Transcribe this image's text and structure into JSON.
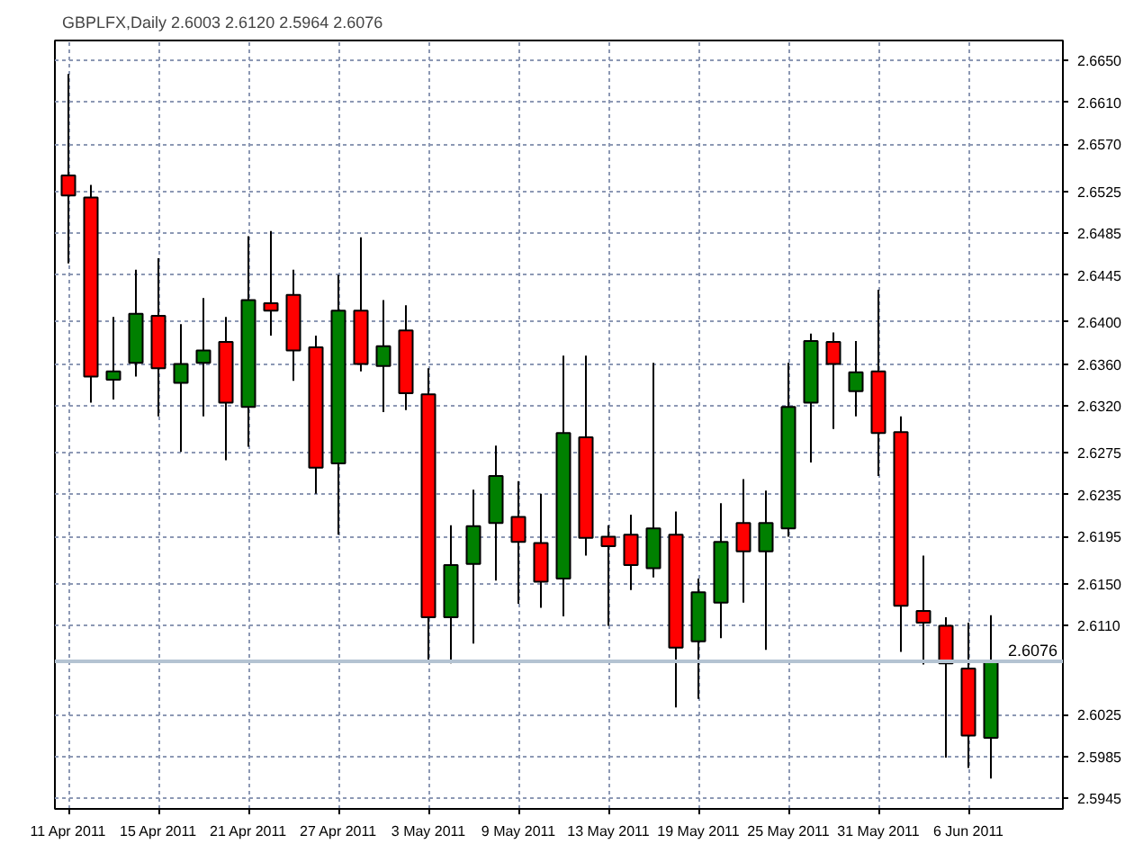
{
  "chart_data": {
    "type": "candlestick",
    "title": "GBPLFX,Daily  2.6003 2.6120 2.5964 2.6076",
    "categories": [
      "11 Apr 2011",
      null,
      null,
      null,
      "15 Apr 2011",
      null,
      null,
      null,
      "21 Apr 2011",
      null,
      null,
      null,
      "27 Apr 2011",
      null,
      null,
      null,
      "3 May 2011",
      null,
      null,
      null,
      "9 May 2011",
      null,
      null,
      null,
      "13 May 2011",
      null,
      null,
      null,
      "19 May 2011",
      null,
      null,
      null,
      "25 May 2011",
      null,
      null,
      null,
      "31 May 2011",
      null,
      null,
      null,
      "6 Jun 2011",
      null
    ],
    "ohlc": [
      [
        2.654,
        2.6637,
        2.6456,
        2.6521
      ],
      [
        2.6519,
        2.6531,
        2.6323,
        2.6348
      ],
      [
        2.6345,
        2.6405,
        2.6326,
        2.6353
      ],
      [
        2.6361,
        2.645,
        2.6348,
        2.6408
      ],
      [
        2.6406,
        2.6461,
        2.631,
        2.6356
      ],
      [
        2.6342,
        2.6398,
        2.6276,
        2.636
      ],
      [
        2.6361,
        2.6423,
        2.631,
        2.6373
      ],
      [
        2.6381,
        2.6405,
        2.6268,
        2.6323
      ],
      [
        2.6319,
        2.6482,
        2.6281,
        2.6421
      ],
      [
        2.6418,
        2.6487,
        2.6387,
        2.6411
      ],
      [
        2.6426,
        2.645,
        2.6344,
        2.6373
      ],
      [
        2.6376,
        2.6387,
        2.6236,
        2.6261
      ],
      [
        2.6265,
        2.6445,
        2.6197,
        2.6411
      ],
      [
        2.6411,
        2.6481,
        2.6353,
        2.636
      ],
      [
        2.6358,
        2.6421,
        2.6314,
        2.6377
      ],
      [
        2.6392,
        2.6416,
        2.6316,
        2.6332
      ],
      [
        2.6331,
        2.6356,
        2.6076,
        2.6118
      ],
      [
        2.6118,
        2.6206,
        2.6074,
        2.6168
      ],
      [
        2.6169,
        2.624,
        2.6093,
        2.6205
      ],
      [
        2.6208,
        2.6282,
        2.6153,
        2.6253
      ],
      [
        2.6214,
        2.6248,
        2.6131,
        2.619
      ],
      [
        2.6189,
        2.6236,
        2.6127,
        2.6152
      ],
      [
        2.6155,
        2.6368,
        2.6119,
        2.6294
      ],
      [
        2.629,
        2.6368,
        2.6177,
        2.6194
      ],
      [
        2.6195,
        2.6206,
        2.611,
        2.6186
      ],
      [
        2.6197,
        2.6216,
        2.6144,
        2.6168
      ],
      [
        2.6165,
        2.6361,
        2.6156,
        2.6203
      ],
      [
        2.6197,
        2.6219,
        2.6032,
        2.6089
      ],
      [
        2.6095,
        2.6155,
        2.604,
        2.6142
      ],
      [
        2.6132,
        2.6227,
        2.6098,
        2.619
      ],
      [
        2.6208,
        2.625,
        2.6132,
        2.6181
      ],
      [
        2.6181,
        2.6239,
        2.6087,
        2.6208
      ],
      [
        2.6203,
        2.6361,
        2.6195,
        2.6319
      ],
      [
        2.6323,
        2.6389,
        2.6266,
        2.6382
      ],
      [
        2.6381,
        2.639,
        2.6298,
        2.636
      ],
      [
        2.6334,
        2.6382,
        2.631,
        2.6352
      ],
      [
        2.6353,
        2.6431,
        2.6253,
        2.6294
      ],
      [
        2.6295,
        2.631,
        2.6085,
        2.6129
      ],
      [
        2.6124,
        2.6177,
        2.6073,
        2.6113
      ],
      [
        2.611,
        2.6118,
        2.5984,
        2.6074
      ],
      [
        2.6069,
        2.6113,
        2.5974,
        2.6005
      ],
      [
        2.6003,
        2.612,
        2.5964,
        2.6076
      ]
    ],
    "colors": [
      "#ff0000",
      "#ff0000",
      "#008000",
      "#008000",
      "#ff0000",
      "#008000",
      "#008000",
      "#ff0000",
      "#008000",
      "#ff0000",
      "#ff0000",
      "#ff0000",
      "#008000",
      "#ff0000",
      "#008000",
      "#ff0000",
      "#ff0000",
      "#008000",
      "#008000",
      "#008000",
      "#ff0000",
      "#ff0000",
      "#008000",
      "#ff0000",
      "#ff0000",
      "#ff0000",
      "#008000",
      "#ff0000",
      "#008000",
      "#008000",
      "#ff0000",
      "#008000",
      "#008000",
      "#008000",
      "#ff0000",
      "#008000",
      "#ff0000",
      "#ff0000",
      "#ff0000",
      "#ff0000",
      "#ff0000",
      "#008000"
    ],
    "ylim": [
      2.5935,
      2.6669
    ],
    "yticks": [
      {
        "value": 2.665,
        "label": "2.6650"
      },
      {
        "value": 2.661,
        "label": "2.6610"
      },
      {
        "value": 2.657,
        "label": "2.6570"
      },
      {
        "value": 2.6525,
        "label": "2.6525"
      },
      {
        "value": 2.6485,
        "label": "2.6485"
      },
      {
        "value": 2.6445,
        "label": "2.6445"
      },
      {
        "value": 2.64,
        "label": "2.6400"
      },
      {
        "value": 2.636,
        "label": "2.6360"
      },
      {
        "value": 2.632,
        "label": "2.6320"
      },
      {
        "value": 2.6275,
        "label": "2.6275"
      },
      {
        "value": 2.6235,
        "label": "2.6235"
      },
      {
        "value": 2.6195,
        "label": "2.6195"
      },
      {
        "value": 2.615,
        "label": "2.6150"
      },
      {
        "value": 2.611,
        "label": "2.6110"
      },
      {
        "value": 2.6025,
        "label": "2.6025"
      },
      {
        "value": 2.5985,
        "label": "2.5985"
      },
      {
        "value": 2.5945,
        "label": "2.5945"
      }
    ],
    "ref_lines": [
      {
        "axis": "y",
        "value": 2.6076,
        "label": "2.6076",
        "color": "#b4c3d2"
      }
    ],
    "grid": true
  }
}
